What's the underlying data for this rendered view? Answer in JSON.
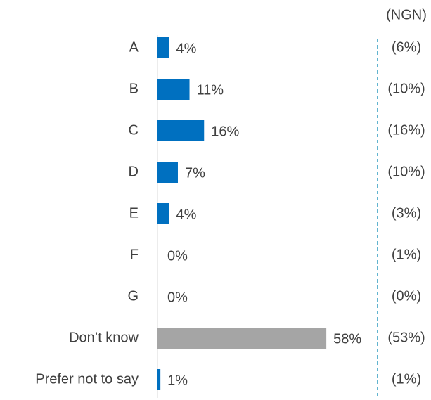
{
  "chart_data": {
    "type": "bar",
    "categories": [
      "A",
      "B",
      "C",
      "D",
      "E",
      "F",
      "G",
      "Don’t know",
      "Prefer not to say"
    ],
    "values": [
      4,
      11,
      16,
      7,
      4,
      0,
      0,
      58,
      1
    ],
    "value_labels": [
      "4%",
      "11%",
      "16%",
      "7%",
      "4%",
      "0%",
      "0%",
      "58%",
      "1%"
    ],
    "colors": [
      "#0070c0",
      "#0070c0",
      "#0070c0",
      "#0070c0",
      "#0070c0",
      "#0070c0",
      "#0070c0",
      "#a5a5a5",
      "#0070c0"
    ],
    "comparison": {
      "name": "(NGN)",
      "values": [
        6,
        10,
        16,
        10,
        3,
        1,
        0,
        53,
        1
      ],
      "value_labels": [
        "(6%)",
        "(10%)",
        "(16%)",
        "(10%)",
        "(3%)",
        "(1%)",
        "(0%)",
        "(53%)",
        "(1%)"
      ],
      "color": "#2e9bbf"
    }
  }
}
